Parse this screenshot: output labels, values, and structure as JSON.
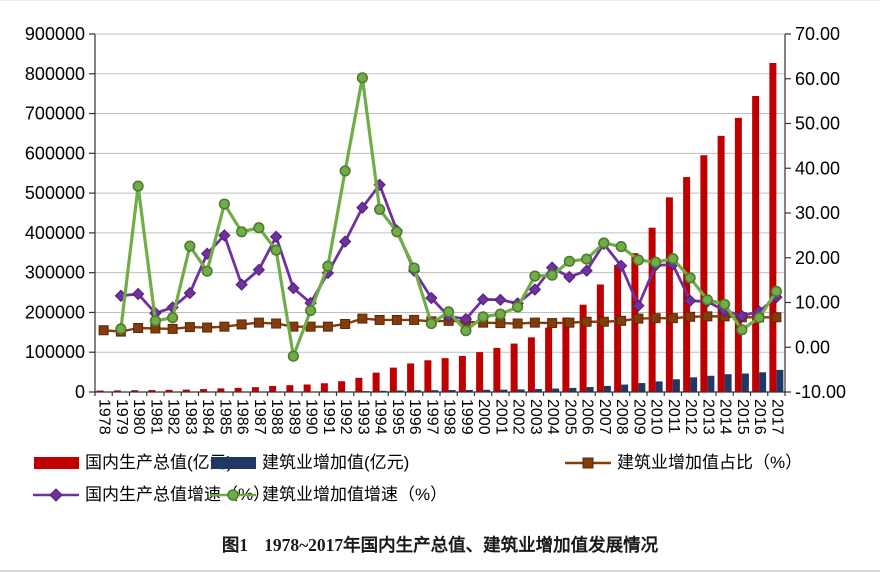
{
  "figure": {
    "caption": {
      "label": "图1",
      "text": "1978~2017年国内生产总值、建筑业增加值发展情况"
    }
  },
  "colors": {
    "grid": "#BFBFBF",
    "axis": "#333333",
    "tick_text": "#000000"
  },
  "chart_data": {
    "type": "combo-bar-line",
    "title": "图1 1978~2017年国内生产总值、建筑业增加值发展情况",
    "x": [
      1978,
      1979,
      1980,
      1981,
      1982,
      1983,
      1984,
      1985,
      1986,
      1987,
      1988,
      1989,
      1990,
      1991,
      1992,
      1993,
      1994,
      1995,
      1996,
      1997,
      1998,
      1999,
      2000,
      2001,
      2002,
      2003,
      2004,
      2005,
      2006,
      2007,
      2008,
      2009,
      2010,
      2011,
      2012,
      2013,
      2014,
      2015,
      2016,
      2017
    ],
    "left_axis": {
      "min": 0,
      "max": 900000,
      "step": 100000,
      "tick_labels": [
        "0",
        "100000",
        "200000",
        "300000",
        "400000",
        "500000",
        "600000",
        "700000",
        "800000",
        "900000"
      ]
    },
    "right_axis": {
      "min": -10,
      "max": 70,
      "step": 10,
      "tick_labels": [
        "-10.00",
        "0.00",
        "10.00",
        "20.00",
        "30.00",
        "40.00",
        "50.00",
        "60.00",
        "70.00"
      ]
    },
    "grid": "horizontal",
    "legend_position": "bottom",
    "series": [
      {
        "name": "国内生产总值(亿元)",
        "type": "bar",
        "axis": "left",
        "color": "#C00000",
        "values": [
          3679,
          4101,
          4588,
          4936,
          5373,
          6021,
          7279,
          9099,
          10376,
          12175,
          15180,
          17180,
          18873,
          22006,
          27195,
          35673,
          48638,
          61340,
          71814,
          79715,
          85196,
          90564,
          100280,
          110863,
          121717,
          137422,
          161840,
          187319,
          219439,
          270232,
          319516,
          349081,
          413030,
          489301,
          540367,
          595244,
          643974,
          689052,
          744127,
          827122
        ]
      },
      {
        "name": "建筑业增加值(亿元)",
        "type": "bar",
        "axis": "left",
        "color": "#1F3864",
        "values": [
          139,
          144,
          196,
          207,
          221,
          271,
          317,
          418,
          526,
          666,
          810,
          794,
          859,
          1015,
          1415,
          2267,
          2965,
          3729,
          4387,
          4622,
          4986,
          5172,
          5522,
          5932,
          6465,
          7491,
          8694,
          10367,
          12409,
          15296,
          18743,
          22399,
          26661,
          31943,
          36896,
          40807,
          44725,
          46457,
          49523,
          55689
        ]
      },
      {
        "name": "建筑业增加值占比（%）",
        "type": "line",
        "marker": "square",
        "axis": "right",
        "color": "#843C0C",
        "marker_stroke": "#58280A",
        "values": [
          3.8,
          3.5,
          4.3,
          4.2,
          4.1,
          4.5,
          4.4,
          4.6,
          5.1,
          5.5,
          5.3,
          4.6,
          4.6,
          4.6,
          5.2,
          6.4,
          6.1,
          6.1,
          6.1,
          5.8,
          5.9,
          5.7,
          5.5,
          5.4,
          5.3,
          5.5,
          5.4,
          5.5,
          5.7,
          5.7,
          5.9,
          6.4,
          6.5,
          6.5,
          6.8,
          6.9,
          6.9,
          6.7,
          6.7,
          6.7
        ]
      },
      {
        "name": "国内生产总值增速（%）",
        "type": "line",
        "marker": "diamond",
        "axis": "right",
        "color": "#7030A0",
        "marker_stroke": "#4F2170",
        "values": [
          null,
          11.5,
          11.9,
          7.6,
          8.9,
          12.1,
          20.9,
          25.0,
          14.0,
          17.3,
          24.7,
          13.2,
          9.9,
          16.6,
          23.6,
          31.2,
          36.3,
          26.1,
          17.1,
          11.0,
          6.9,
          6.3,
          10.7,
          10.6,
          9.8,
          12.9,
          17.8,
          15.7,
          17.1,
          23.1,
          18.2,
          9.3,
          18.3,
          18.5,
          10.4,
          10.2,
          8.2,
          7.0,
          8.0,
          11.2
        ]
      },
      {
        "name": "建筑业增加值增速（%）",
        "type": "line",
        "marker": "circle",
        "axis": "right",
        "color": "#70AD47",
        "marker_stroke": "#4E7B2F",
        "values": [
          null,
          4.1,
          36.0,
          5.9,
          6.6,
          22.6,
          17.0,
          32.0,
          25.8,
          26.7,
          21.7,
          -2.0,
          8.2,
          18.1,
          39.4,
          60.2,
          30.8,
          25.8,
          17.7,
          5.3,
          7.9,
          3.7,
          6.8,
          7.4,
          9.0,
          15.9,
          16.1,
          19.2,
          19.7,
          23.3,
          22.5,
          19.5,
          19.0,
          19.8,
          15.5,
          10.6,
          9.6,
          3.9,
          6.6,
          12.5
        ]
      }
    ]
  }
}
